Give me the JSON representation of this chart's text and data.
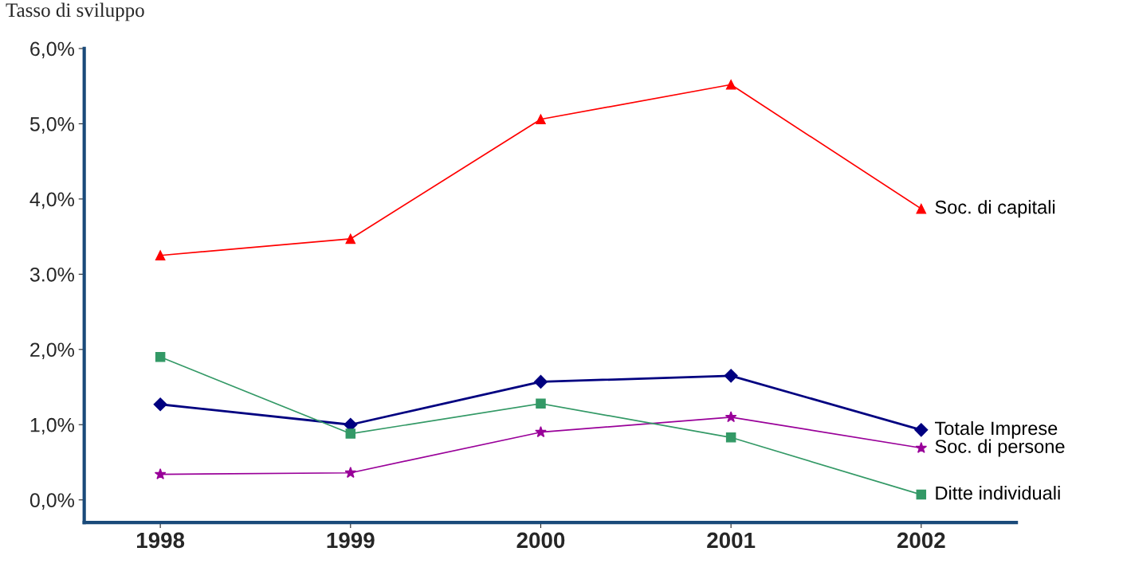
{
  "chart_data": {
    "type": "line",
    "ylabel": "Tasso di sviluppo",
    "categories": [
      "1998",
      "1999",
      "2000",
      "2001",
      "2002"
    ],
    "series": [
      {
        "name": "Soc. di capitali",
        "color": "#ff0000",
        "marker": "triangle",
        "values": [
          3.25,
          3.47,
          5.06,
          5.52,
          3.87
        ]
      },
      {
        "name": "Totale Imprese",
        "color": "#000080",
        "marker": "diamond",
        "values": [
          1.27,
          1.0,
          1.57,
          1.65,
          0.93
        ]
      },
      {
        "name": "Soc. di persone",
        "color": "#990099",
        "marker": "star",
        "values": [
          0.34,
          0.36,
          0.9,
          1.1,
          0.69
        ]
      },
      {
        "name": "Ditte individuali",
        "color": "#339966",
        "marker": "square",
        "values": [
          1.9,
          0.88,
          1.28,
          0.83,
          0.07
        ]
      }
    ],
    "ylim": [
      -0.3,
      6.0
    ],
    "yticks": [
      {
        "value": 0,
        "label": "0,0%"
      },
      {
        "value": 1,
        "label": "1,0%"
      },
      {
        "value": 2,
        "label": "2,0%"
      },
      {
        "value": 3,
        "label": "3.0%"
      },
      {
        "value": 4,
        "label": "4,0%"
      },
      {
        "value": 5,
        "label": "5,0%"
      },
      {
        "value": 6,
        "label": "6,0%"
      }
    ],
    "grid": false,
    "legend": false
  }
}
